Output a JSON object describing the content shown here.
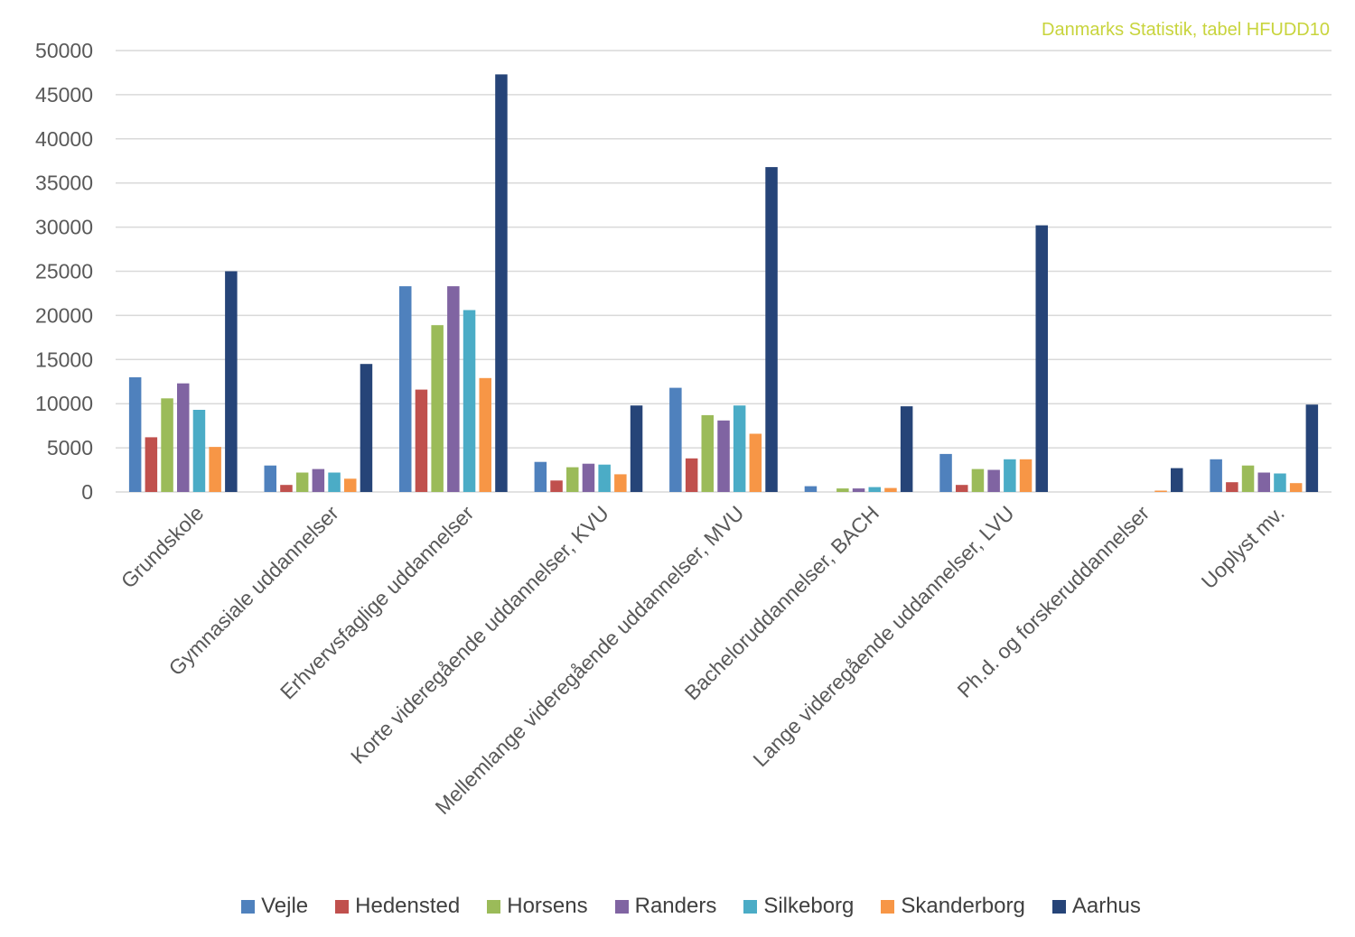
{
  "source_note": "Danmarks Statistik, tabel HFUDD10",
  "colors": {
    "source_note": "#c8d43c",
    "grid": "#d9d9d9",
    "axis_text": "#595959"
  },
  "chart_data": {
    "type": "bar",
    "title": "",
    "xlabel": "",
    "ylabel": "",
    "ylim": [
      0,
      50000
    ],
    "yticks": [
      0,
      5000,
      10000,
      15000,
      20000,
      25000,
      30000,
      35000,
      40000,
      45000,
      50000
    ],
    "grid": true,
    "legend_position": "bottom",
    "categories": [
      "Grundskole",
      "Gymnasiale uddannelser",
      "Erhvervsfaglige uddannelser",
      "Korte videregående uddannelser, KVU",
      "Mellemlange videregående uddannelser, MVU",
      "Bacheloruddannelser, BACH",
      "Lange videregående uddannelser, LVU",
      "Ph.d. og forskeruddannelser",
      "Uoplyst mv."
    ],
    "series": [
      {
        "name": "Vejle",
        "color": "#4f81bd",
        "values": [
          13000,
          3000,
          23300,
          3400,
          11800,
          650,
          4300,
          0,
          3700
        ]
      },
      {
        "name": "Hedensted",
        "color": "#c0504d",
        "values": [
          6200,
          800,
          11600,
          1300,
          3800,
          0,
          800,
          0,
          1100
        ]
      },
      {
        "name": "Horsens",
        "color": "#9bbb59",
        "values": [
          10600,
          2200,
          18900,
          2800,
          8700,
          400,
          2600,
          0,
          3000
        ]
      },
      {
        "name": "Randers",
        "color": "#8064a2",
        "values": [
          12300,
          2600,
          23300,
          3200,
          8100,
          400,
          2500,
          0,
          2200
        ]
      },
      {
        "name": "Silkeborg",
        "color": "#4bacc6",
        "values": [
          9300,
          2200,
          20600,
          3100,
          9800,
          550,
          3700,
          0,
          2100
        ]
      },
      {
        "name": "Skanderborg",
        "color": "#f79646",
        "values": [
          5100,
          1500,
          12900,
          2000,
          6600,
          450,
          3700,
          150,
          1000
        ]
      },
      {
        "name": "Aarhus",
        "color": "#264478",
        "values": [
          25000,
          14500,
          47300,
          9800,
          36800,
          9700,
          30200,
          2700,
          9900
        ]
      }
    ]
  }
}
